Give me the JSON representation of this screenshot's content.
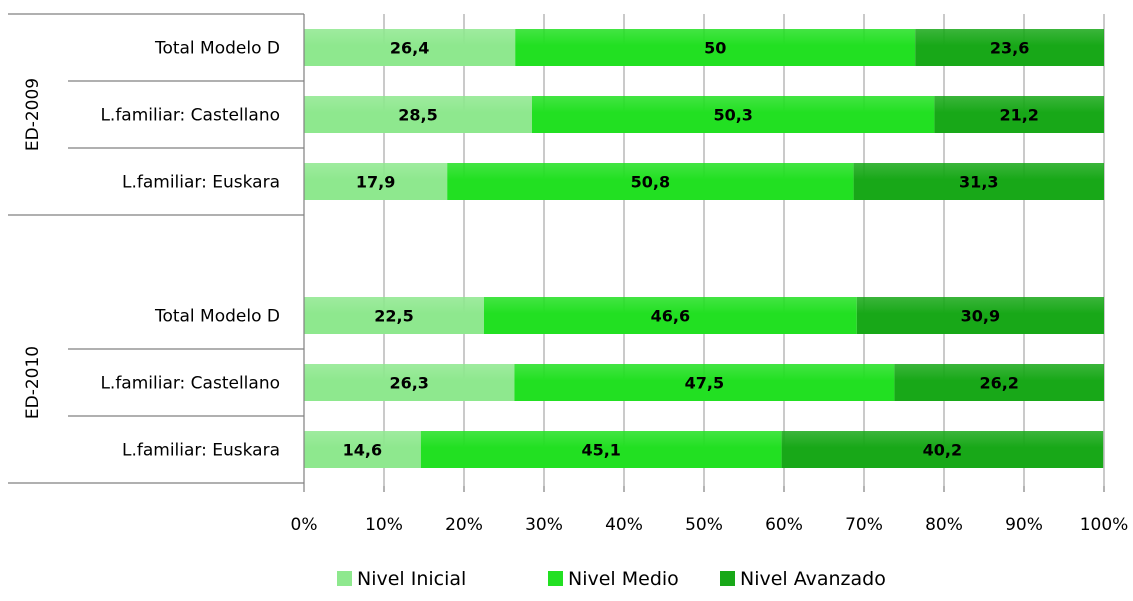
{
  "chart_data": {
    "type": "bar",
    "orientation": "horizontal",
    "stacked": true,
    "percent_stacked": true,
    "groups": [
      {
        "name": "ED-2009",
        "categories": [
          "Total Modelo D",
          "L.familiar: Castellano",
          "L.familiar: Euskara"
        ],
        "values": {
          "Nivel Inicial": [
            26.4,
            28.5,
            17.9
          ],
          "Nivel Medio": [
            50,
            50.3,
            50.8
          ],
          "Nivel Avanzado": [
            23.6,
            21.2,
            31.3
          ]
        },
        "labels": {
          "Nivel Inicial": [
            "26,4",
            "28,5",
            "17,9"
          ],
          "Nivel Medio": [
            "50",
            "50,3",
            "50,8"
          ],
          "Nivel Avanzado": [
            "23,6",
            "21,2",
            "31,3"
          ]
        }
      },
      {
        "name": "ED-2010",
        "categories": [
          "Total Modelo D",
          "L.familiar: Castellano",
          "L.familiar: Euskara"
        ],
        "values": {
          "Nivel Inicial": [
            22.5,
            26.3,
            14.6
          ],
          "Nivel Medio": [
            46.6,
            47.5,
            45.1
          ],
          "Nivel Avanzado": [
            30.9,
            26.2,
            40.2
          ]
        },
        "labels": {
          "Nivel Inicial": [
            "22,5",
            "26,3",
            "14,6"
          ],
          "Nivel Medio": [
            "46,6",
            "47,5",
            "45,1"
          ],
          "Nivel Avanzado": [
            "30,9",
            "26,2",
            "40,2"
          ]
        }
      }
    ],
    "series": [
      {
        "name": "Nivel Inicial",
        "color": "#8ee88e"
      },
      {
        "name": "Nivel Medio",
        "color": "#22e022"
      },
      {
        "name": "Nivel Avanzado",
        "color": "#18a818"
      }
    ],
    "xlim": [
      0,
      100
    ],
    "x_ticks": [
      "0%",
      "10%",
      "20%",
      "30%",
      "40%",
      "50%",
      "60%",
      "70%",
      "80%",
      "90%",
      "100%"
    ],
    "grid": true,
    "legend_position": "bottom"
  }
}
